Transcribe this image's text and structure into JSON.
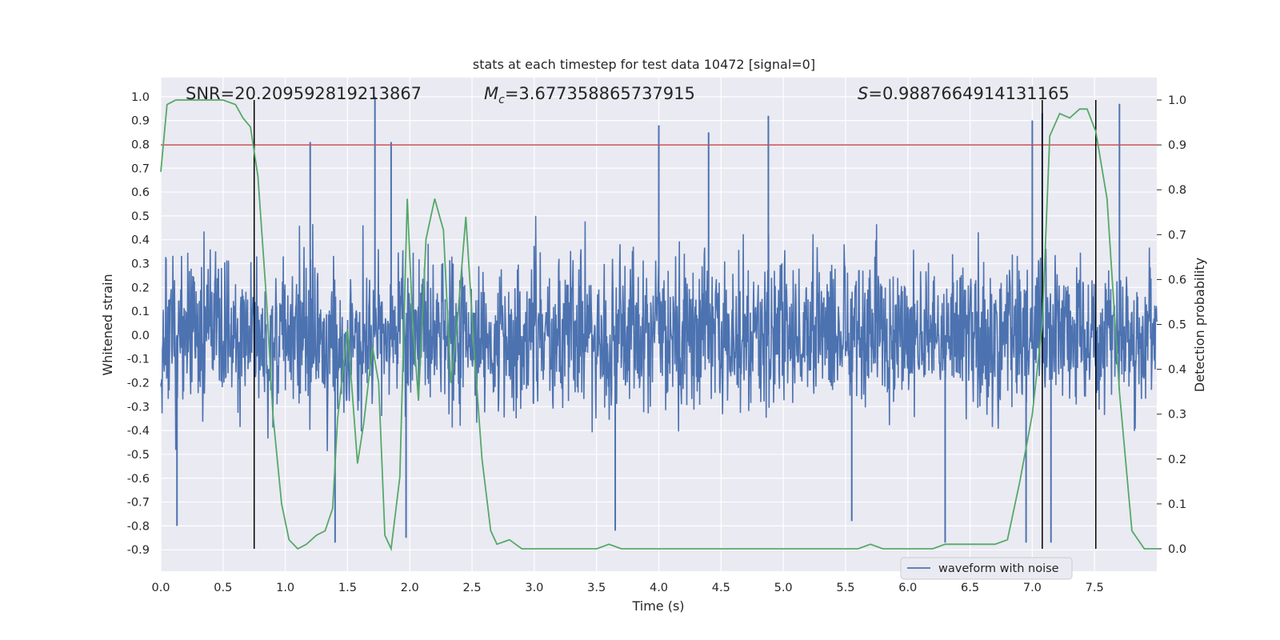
{
  "chart_data": {
    "type": "line",
    "title": "stats at each timestep for test data 10472 [signal=0]",
    "xlabel": "Time (s)",
    "ylabel_left": "Whitened strain",
    "ylabel_right": "Detection probability",
    "xlim": [
      0.0,
      8.0
    ],
    "ylim_left": [
      -0.99,
      1.08
    ],
    "ylim_right": [
      -0.05,
      1.05
    ],
    "x_ticks": [
      0.0,
      0.5,
      1.0,
      1.5,
      2.0,
      2.5,
      3.0,
      3.5,
      4.0,
      4.5,
      5.0,
      5.5,
      6.0,
      6.5,
      7.0,
      7.5
    ],
    "x_tick_labels": [
      "0.0",
      "0.5",
      "1.0",
      "1.5",
      "2.0",
      "2.5",
      "3.0",
      "3.5",
      "4.0",
      "4.5",
      "5.0",
      "5.5",
      "6.0",
      "6.5",
      "7.0",
      "7.5"
    ],
    "y_left_ticks": [
      1.0,
      0.9,
      0.8,
      0.7,
      0.6,
      0.5,
      0.4,
      0.3,
      0.2,
      0.1,
      0.0,
      -0.1,
      -0.2,
      -0.3,
      -0.4,
      -0.5,
      -0.6,
      -0.7,
      -0.8,
      -0.9
    ],
    "y_left_tick_labels": [
      "1.0",
      "0.9",
      "0.8",
      "0.7",
      "0.6",
      "0.5",
      "0.4",
      "0.3",
      "0.2",
      "0.1",
      "0.0",
      "-0.1",
      "-0.2",
      "-0.3",
      "-0.4",
      "-0.5",
      "-0.6",
      "-0.7",
      "-0.8",
      "-0.9"
    ],
    "y_right_ticks": [
      1.0,
      0.9,
      0.8,
      0.7,
      0.6,
      0.5,
      0.4,
      0.3,
      0.2,
      0.1,
      0.0
    ],
    "y_right_tick_labels": [
      "1.0",
      "0.9",
      "0.8",
      "0.7",
      "0.6",
      "0.5",
      "0.4",
      "0.3",
      "0.2",
      "0.1",
      "0.0"
    ],
    "annotations": {
      "snr": "SNR=20.209592819213867",
      "mc_symbol": "M",
      "mc_subscript": "c",
      "mc_value": "=3.677358865737915",
      "s_symbol": "S",
      "s_value": "=0.9887664914131165"
    },
    "threshold": {
      "value": 0.9,
      "axis": "right",
      "color": "#c44e52"
    },
    "vertical_lines": [
      0.75,
      7.08,
      7.51
    ],
    "series": [
      {
        "name": "waveform with noise",
        "axis": "left",
        "color": "#4c72b0",
        "style": "dense noise",
        "x_range": [
          0.0,
          8.0
        ],
        "envelope_typical": [
          -0.45,
          0.45
        ],
        "spikes": [
          {
            "x": 1.72,
            "y": 1.0
          },
          {
            "x": 1.2,
            "y": 0.81
          },
          {
            "x": 1.85,
            "y": 0.81
          },
          {
            "x": 4.0,
            "y": 0.88
          },
          {
            "x": 4.4,
            "y": 0.85
          },
          {
            "x": 4.88,
            "y": 0.92
          },
          {
            "x": 7.0,
            "y": 0.9
          },
          {
            "x": 7.08,
            "y": 0.93
          },
          {
            "x": 7.7,
            "y": 0.97
          },
          {
            "x": 0.13,
            "y": -0.8
          },
          {
            "x": 1.4,
            "y": -0.87
          },
          {
            "x": 1.97,
            "y": -0.85
          },
          {
            "x": 3.65,
            "y": -0.82
          },
          {
            "x": 6.3,
            "y": -0.87
          },
          {
            "x": 6.95,
            "y": -0.87
          },
          {
            "x": 7.15,
            "y": -0.87
          },
          {
            "x": 5.55,
            "y": -0.78
          }
        ]
      },
      {
        "name": "detection probability",
        "axis": "right",
        "color": "#55a868",
        "x": [
          0.0,
          0.05,
          0.12,
          0.2,
          0.3,
          0.4,
          0.5,
          0.6,
          0.66,
          0.72,
          0.78,
          0.85,
          0.9,
          0.97,
          1.03,
          1.1,
          1.17,
          1.25,
          1.32,
          1.38,
          1.42,
          1.5,
          1.58,
          1.63,
          1.7,
          1.75,
          1.8,
          1.85,
          1.92,
          1.98,
          2.02,
          2.07,
          2.13,
          2.2,
          2.27,
          2.33,
          2.38,
          2.45,
          2.52,
          2.58,
          2.65,
          2.7,
          2.8,
          2.9,
          3.0,
          3.2,
          3.35,
          3.5,
          3.6,
          3.7,
          3.9,
          4.2,
          4.5,
          4.8,
          5.1,
          5.4,
          5.6,
          5.7,
          5.8,
          6.0,
          6.2,
          6.3,
          6.4,
          6.5,
          6.6,
          6.7,
          6.8,
          6.9,
          7.0,
          7.08,
          7.14,
          7.22,
          7.3,
          7.38,
          7.44,
          7.51,
          7.6,
          7.7,
          7.8,
          7.9,
          8.0
        ],
        "y": [
          0.84,
          0.99,
          1.0,
          1.0,
          1.0,
          1.0,
          1.0,
          0.99,
          0.96,
          0.94,
          0.83,
          0.55,
          0.3,
          0.1,
          0.02,
          0.0,
          0.01,
          0.03,
          0.04,
          0.09,
          0.29,
          0.49,
          0.19,
          0.28,
          0.45,
          0.37,
          0.03,
          0.0,
          0.16,
          0.78,
          0.52,
          0.33,
          0.69,
          0.78,
          0.71,
          0.37,
          0.5,
          0.74,
          0.43,
          0.2,
          0.04,
          0.01,
          0.02,
          0.0,
          0.0,
          0.0,
          0.0,
          0.0,
          0.01,
          0.0,
          0.0,
          0.0,
          0.0,
          0.0,
          0.0,
          0.0,
          0.0,
          0.01,
          0.0,
          0.0,
          0.0,
          0.01,
          0.01,
          0.01,
          0.01,
          0.01,
          0.02,
          0.15,
          0.3,
          0.5,
          0.92,
          0.97,
          0.96,
          0.98,
          0.98,
          0.93,
          0.78,
          0.35,
          0.04,
          0.0,
          0.0
        ]
      }
    ],
    "legend": {
      "entries": [
        "waveform with noise"
      ],
      "placement": "lower-right"
    }
  }
}
